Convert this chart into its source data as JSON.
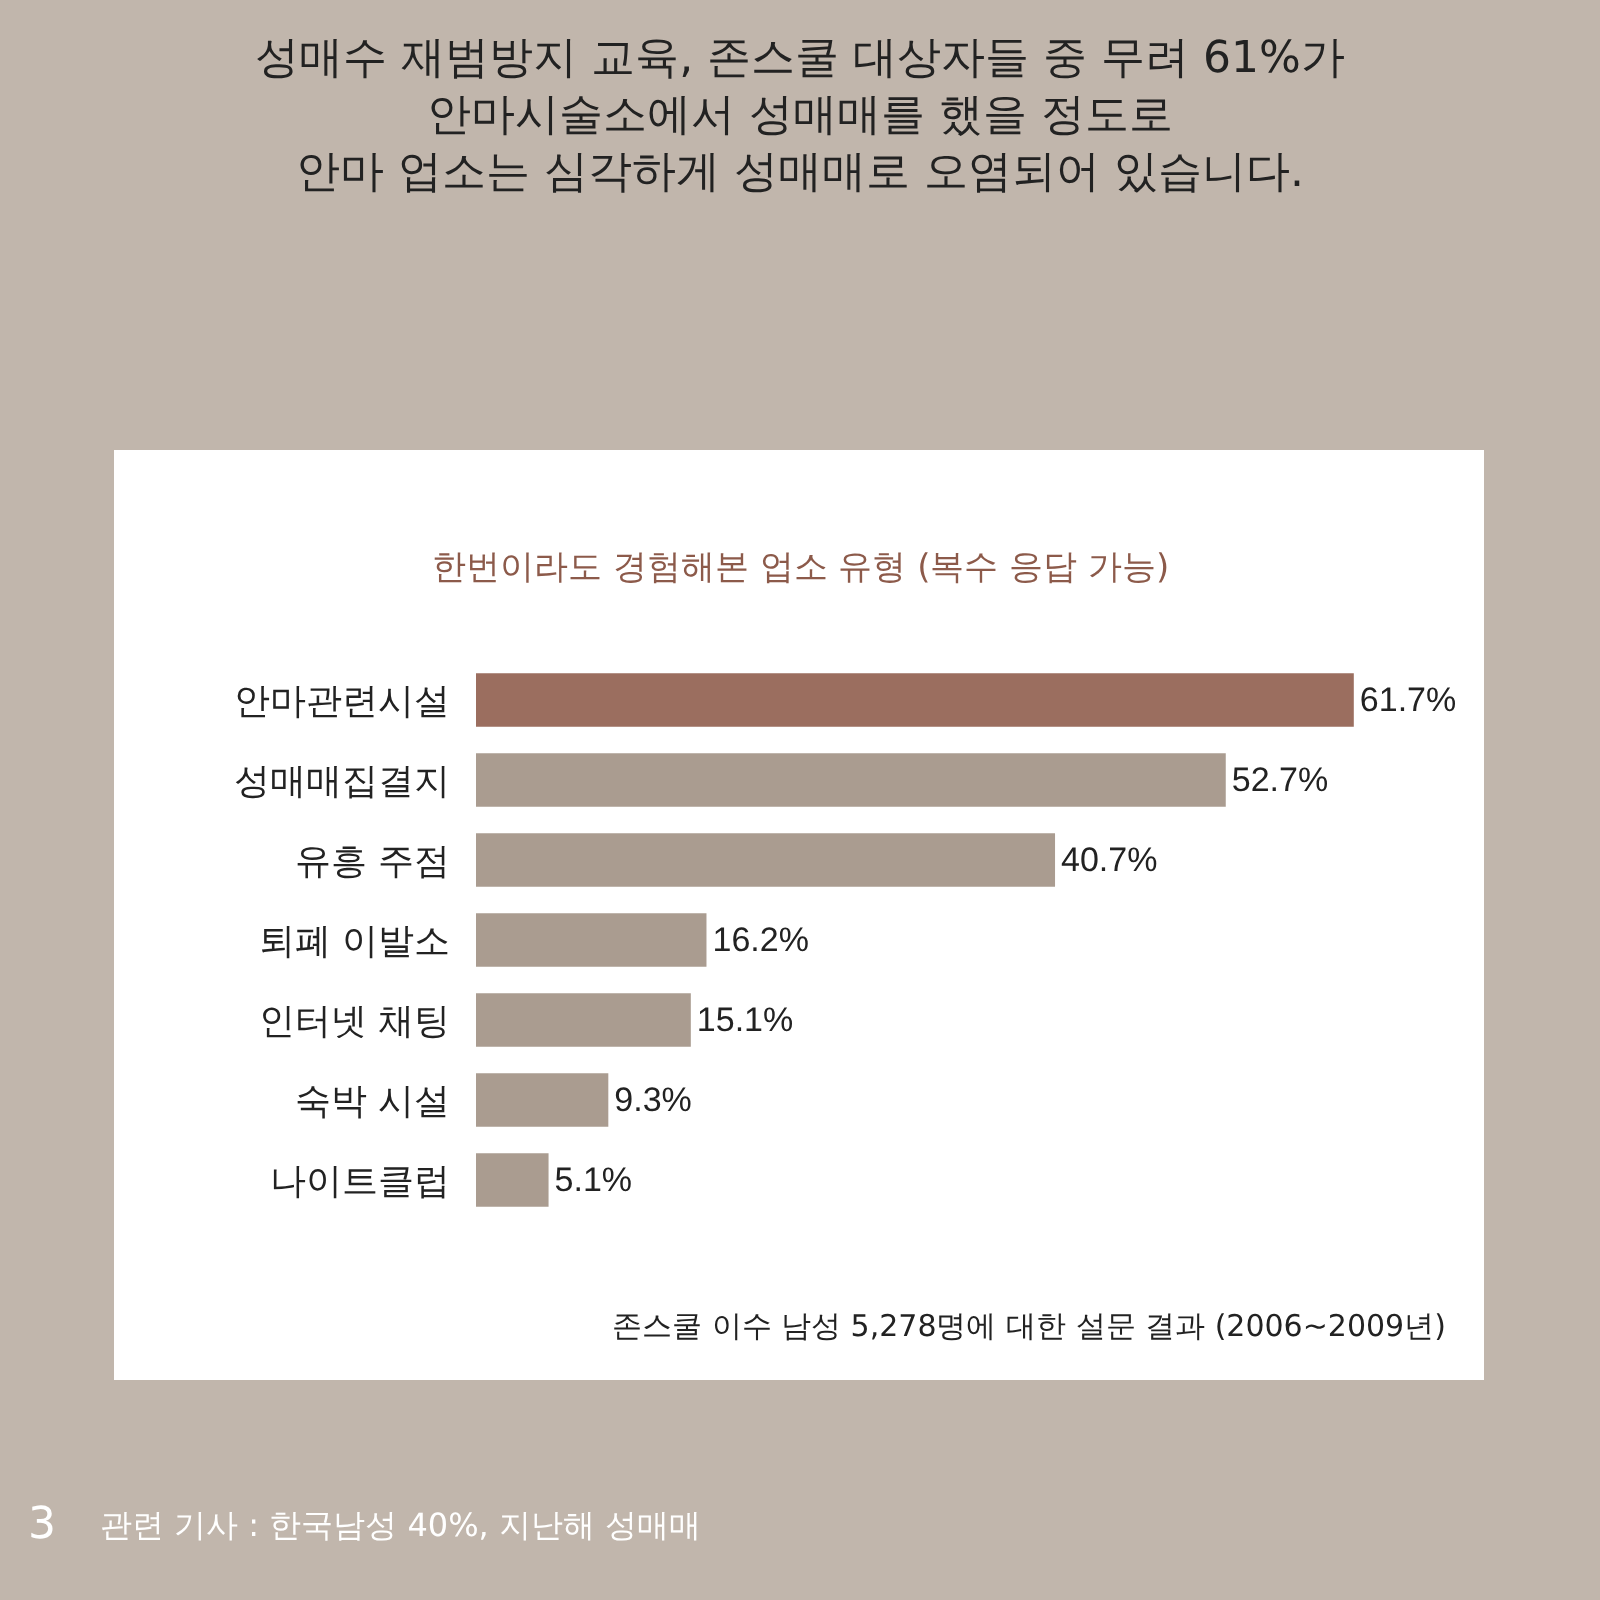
{
  "chart_data": {
    "type": "bar",
    "orientation": "horizontal",
    "title": "성매수 재범방지 교육, 존스쿨 대상자들 중 무려 61%가\n안마시술소에서 성매매를 했을 정도로\n안마 업소는 심각하게 성매매로 오염되어 있습니다.",
    "subtitle": "한번이라도 경험해본 업소 유형 (복수 응답 가능)",
    "categories": [
      "안마관련시설",
      "성매매집결지",
      "유흥 주점",
      "퇴폐 이발소",
      "인터넷 채팅",
      "숙박 시설",
      "나이트클럽"
    ],
    "values": [
      61.7,
      52.7,
      40.7,
      16.2,
      15.1,
      9.3,
      5.1
    ],
    "value_labels": [
      "61.7%",
      "52.7%",
      "40.7%",
      "16.2%",
      "15.1%",
      "9.3%",
      "5.1%"
    ],
    "colors": [
      "#9b6e5f",
      "#aa9c90",
      "#aa9c90",
      "#aa9c90",
      "#aa9c90",
      "#aa9c90",
      "#aa9c90"
    ],
    "annotations": [
      "존스쿨 이수 남성 5,278명에 대한 설문 결과 (2006~2009년)",
      "3",
      "관련 기사 : 한국남성 40%, 지난해 성매매"
    ]
  }
}
